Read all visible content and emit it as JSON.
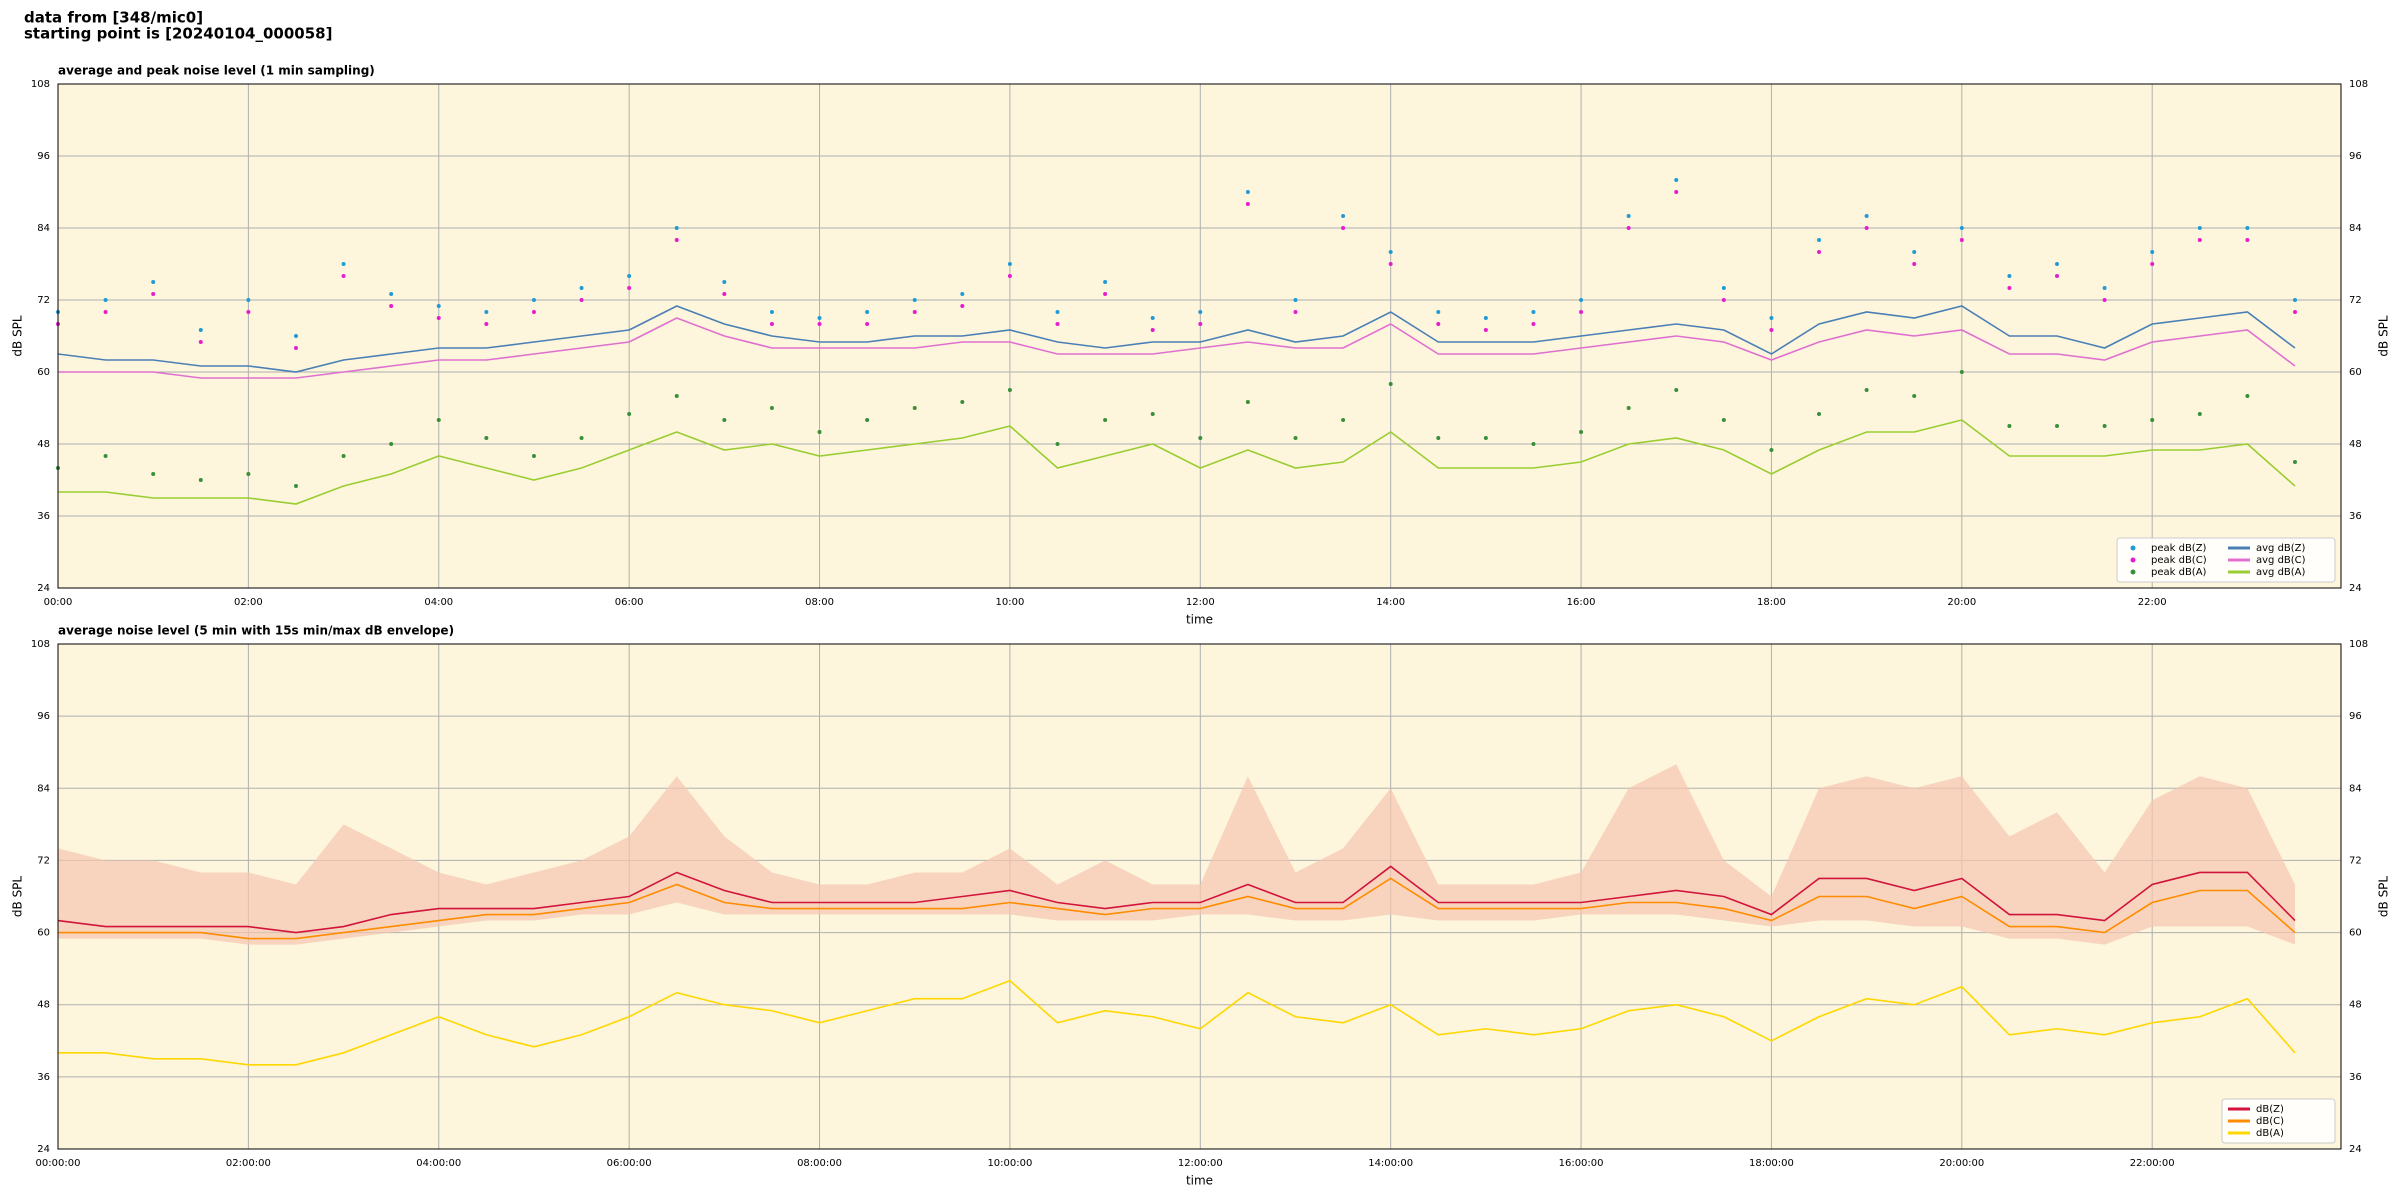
{
  "header": {
    "line1": "data from [348/mic0]",
    "line2": "starting point is [20240104_000058]"
  },
  "chart_data": [
    {
      "type": "line",
      "title": "average and peak noise level (1 min sampling)",
      "xlabel": "time",
      "ylabel": "dB SPL",
      "xlim": [
        "00:00",
        "23:59"
      ],
      "xticks": [
        "00:00",
        "02:00",
        "04:00",
        "06:00",
        "08:00",
        "10:00",
        "12:00",
        "14:00",
        "16:00",
        "18:00",
        "20:00",
        "22:00"
      ],
      "ylim": [
        24,
        108
      ],
      "yticks": [
        24,
        36,
        48,
        60,
        72,
        84,
        96,
        108
      ],
      "grid": true,
      "legend": "lower right",
      "legend_columns": 2,
      "x": [
        "00:00",
        "00:30",
        "01:00",
        "01:30",
        "02:00",
        "02:30",
        "03:00",
        "03:30",
        "04:00",
        "04:30",
        "05:00",
        "05:30",
        "06:00",
        "06:30",
        "07:00",
        "07:30",
        "08:00",
        "08:30",
        "09:00",
        "09:30",
        "10:00",
        "10:30",
        "11:00",
        "11:30",
        "12:00",
        "12:30",
        "13:00",
        "13:30",
        "14:00",
        "14:30",
        "15:00",
        "15:30",
        "16:00",
        "16:30",
        "17:00",
        "17:30",
        "18:00",
        "18:30",
        "19:00",
        "19:30",
        "20:00",
        "20:30",
        "21:00",
        "21:30",
        "22:00",
        "22:30",
        "23:00",
        "23:30"
      ],
      "series": [
        {
          "name": "peak dB(Z)",
          "style": "points",
          "color": "#1f9bd8",
          "values": [
            70,
            72,
            75,
            67,
            72,
            66,
            78,
            73,
            71,
            70,
            72,
            74,
            76,
            84,
            75,
            70,
            69,
            70,
            72,
            73,
            78,
            70,
            75,
            69,
            70,
            90,
            72,
            86,
            80,
            70,
            69,
            70,
            72,
            86,
            92,
            74,
            69,
            82,
            86,
            80,
            84,
            76,
            78,
            74,
            80,
            84,
            84,
            72
          ]
        },
        {
          "name": "peak dB(C)",
          "style": "points",
          "color": "#e81ccf",
          "values": [
            68,
            70,
            73,
            65,
            70,
            64,
            76,
            71,
            69,
            68,
            70,
            72,
            74,
            82,
            73,
            68,
            68,
            68,
            70,
            71,
            76,
            68,
            73,
            67,
            68,
            88,
            70,
            84,
            78,
            68,
            67,
            68,
            70,
            84,
            90,
            72,
            67,
            80,
            84,
            78,
            82,
            74,
            76,
            72,
            78,
            82,
            82,
            70
          ]
        },
        {
          "name": "peak dB(A)",
          "style": "points",
          "color": "#3a8f3a",
          "values": [
            44,
            46,
            43,
            42,
            43,
            41,
            46,
            48,
            52,
            49,
            46,
            49,
            53,
            56,
            52,
            54,
            50,
            52,
            54,
            55,
            57,
            48,
            52,
            53,
            49,
            55,
            49,
            52,
            58,
            49,
            49,
            48,
            50,
            54,
            57,
            52,
            47,
            53,
            57,
            56,
            60,
            51,
            51,
            51,
            52,
            53,
            56,
            45
          ]
        },
        {
          "name": "avg dB(Z)",
          "style": "line",
          "color": "#4a7fb5",
          "values": [
            63,
            62,
            62,
            61,
            61,
            60,
            62,
            63,
            64,
            64,
            65,
            66,
            67,
            71,
            68,
            66,
            65,
            65,
            66,
            66,
            67,
            65,
            64,
            65,
            65,
            67,
            65,
            66,
            70,
            65,
            65,
            65,
            66,
            67,
            68,
            67,
            63,
            68,
            70,
            69,
            71,
            66,
            66,
            64,
            68,
            69,
            70,
            64
          ]
        },
        {
          "name": "avg dB(C)",
          "style": "line",
          "color": "#e070d0",
          "values": [
            60,
            60,
            60,
            59,
            59,
            59,
            60,
            61,
            62,
            62,
            63,
            64,
            65,
            69,
            66,
            64,
            64,
            64,
            64,
            65,
            65,
            63,
            63,
            63,
            64,
            65,
            64,
            64,
            68,
            63,
            63,
            63,
            64,
            65,
            66,
            65,
            62,
            65,
            67,
            66,
            67,
            63,
            63,
            62,
            65,
            66,
            67,
            61
          ]
        },
        {
          "name": "avg dB(A)",
          "style": "line",
          "color": "#9acd32",
          "values": [
            40,
            40,
            39,
            39,
            39,
            38,
            41,
            43,
            46,
            44,
            42,
            44,
            47,
            50,
            47,
            48,
            46,
            47,
            48,
            49,
            51,
            44,
            46,
            48,
            44,
            47,
            44,
            45,
            50,
            44,
            44,
            44,
            45,
            48,
            49,
            47,
            43,
            47,
            50,
            50,
            52,
            46,
            46,
            46,
            47,
            47,
            48,
            41
          ]
        }
      ]
    },
    {
      "type": "line",
      "title": "average noise level (5 min with 15s min/max dB envelope)",
      "xlabel": "time",
      "ylabel": "dB SPL",
      "xlim": [
        "00:00:00",
        "23:59:00"
      ],
      "xticks": [
        "00:00:00",
        "02:00:00",
        "04:00:00",
        "06:00:00",
        "08:00:00",
        "10:00:00",
        "12:00:00",
        "14:00:00",
        "16:00:00",
        "18:00:00",
        "20:00:00",
        "22:00:00"
      ],
      "ylim": [
        24,
        108
      ],
      "yticks": [
        24,
        36,
        48,
        60,
        72,
        84,
        96,
        108
      ],
      "grid": true,
      "legend": "lower right",
      "legend_columns": 1,
      "x": [
        "00:00",
        "00:30",
        "01:00",
        "01:30",
        "02:00",
        "02:30",
        "03:00",
        "03:30",
        "04:00",
        "04:30",
        "05:00",
        "05:30",
        "06:00",
        "06:30",
        "07:00",
        "07:30",
        "08:00",
        "08:30",
        "09:00",
        "09:30",
        "10:00",
        "10:30",
        "11:00",
        "11:30",
        "12:00",
        "12:30",
        "13:00",
        "13:30",
        "14:00",
        "14:30",
        "15:00",
        "15:30",
        "16:00",
        "16:30",
        "17:00",
        "17:30",
        "18:00",
        "18:30",
        "19:00",
        "19:30",
        "20:00",
        "20:30",
        "21:00",
        "21:30",
        "22:00",
        "22:30",
        "23:00",
        "23:30"
      ],
      "envelope": {
        "color": "#f5c6b0",
        "high": [
          74,
          72,
          72,
          70,
          70,
          68,
          78,
          74,
          70,
          68,
          70,
          72,
          76,
          86,
          76,
          70,
          68,
          68,
          70,
          70,
          74,
          68,
          72,
          68,
          68,
          86,
          70,
          74,
          84,
          68,
          68,
          68,
          70,
          84,
          88,
          72,
          66,
          84,
          86,
          84,
          86,
          76,
          80,
          70,
          82,
          86,
          84,
          68
        ],
        "low": [
          59,
          59,
          59,
          59,
          58,
          58,
          59,
          60,
          61,
          62,
          62,
          63,
          63,
          65,
          63,
          63,
          63,
          63,
          63,
          63,
          63,
          62,
          62,
          62,
          63,
          63,
          62,
          62,
          63,
          62,
          62,
          62,
          63,
          63,
          63,
          62,
          61,
          62,
          62,
          61,
          61,
          59,
          59,
          58,
          61,
          61,
          61,
          58
        ]
      },
      "series": [
        {
          "name": "dB(Z)",
          "style": "line",
          "color": "#d2143c",
          "values": [
            62,
            61,
            61,
            61,
            61,
            60,
            61,
            63,
            64,
            64,
            64,
            65,
            66,
            70,
            67,
            65,
            65,
            65,
            65,
            66,
            67,
            65,
            64,
            65,
            65,
            68,
            65,
            65,
            71,
            65,
            65,
            65,
            65,
            66,
            67,
            66,
            63,
            69,
            69,
            67,
            69,
            63,
            63,
            62,
            68,
            70,
            70,
            62
          ]
        },
        {
          "name": "dB(C)",
          "style": "line",
          "color": "#ff8c00",
          "values": [
            60,
            60,
            60,
            60,
            59,
            59,
            60,
            61,
            62,
            63,
            63,
            64,
            65,
            68,
            65,
            64,
            64,
            64,
            64,
            64,
            65,
            64,
            63,
            64,
            64,
            66,
            64,
            64,
            69,
            64,
            64,
            64,
            64,
            65,
            65,
            64,
            62,
            66,
            66,
            64,
            66,
            61,
            61,
            60,
            65,
            67,
            67,
            60
          ]
        },
        {
          "name": "dB(A)",
          "style": "line",
          "color": "#ffd700",
          "values": [
            40,
            40,
            39,
            39,
            38,
            38,
            40,
            43,
            46,
            43,
            41,
            43,
            46,
            50,
            48,
            47,
            45,
            47,
            49,
            49,
            52,
            45,
            47,
            46,
            44,
            50,
            46,
            45,
            48,
            43,
            44,
            43,
            44,
            47,
            48,
            46,
            42,
            46,
            49,
            48,
            51,
            43,
            44,
            43,
            45,
            46,
            49,
            40
          ]
        }
      ]
    }
  ]
}
